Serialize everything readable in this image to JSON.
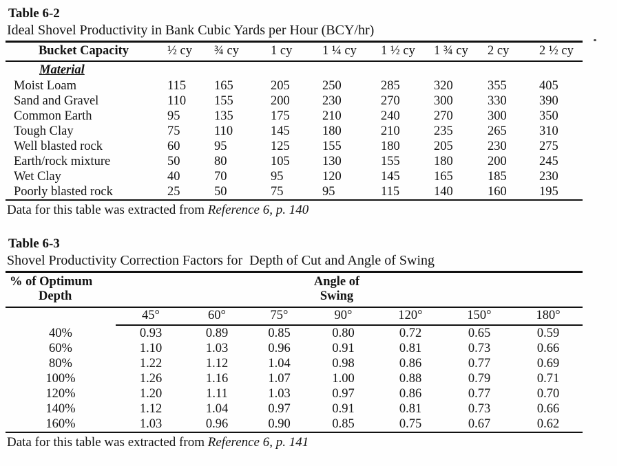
{
  "colors": {
    "page_background": "#fefefe",
    "ink": "#131313",
    "rule": "#111111"
  },
  "table_6_2": {
    "title": "Table 6-2",
    "subtitle": "Ideal Shovel Productivity in Bank Cubic Yards per Hour (BCY/hr)",
    "header_label": "Bucket Capacity",
    "columns": [
      "½ cy",
      "¾ cy",
      "1 cy",
      "1 ¼ cy",
      "1 ½ cy",
      "1 ¾ cy",
      "2 cy",
      "2 ½ cy"
    ],
    "material_label": "Material",
    "rows": [
      {
        "material": "Moist Loam",
        "values": [
          115,
          165,
          205,
          250,
          285,
          320,
          355,
          405
        ]
      },
      {
        "material": "Sand and Gravel",
        "values": [
          110,
          155,
          200,
          230,
          270,
          300,
          330,
          390
        ]
      },
      {
        "material": "Common Earth",
        "values": [
          95,
          135,
          175,
          210,
          240,
          270,
          300,
          350
        ]
      },
      {
        "material": "Tough Clay",
        "values": [
          75,
          110,
          145,
          180,
          210,
          235,
          265,
          310
        ]
      },
      {
        "material": "Well blasted rock",
        "values": [
          60,
          95,
          125,
          155,
          180,
          205,
          230,
          275
        ]
      },
      {
        "material": "Earth/rock mixture",
        "values": [
          50,
          80,
          105,
          130,
          155,
          180,
          200,
          245
        ]
      },
      {
        "material": "Wet Clay",
        "values": [
          40,
          70,
          95,
          120,
          145,
          165,
          185,
          230
        ]
      },
      {
        "material": "Poorly blasted rock",
        "values": [
          25,
          50,
          75,
          95,
          115,
          140,
          160,
          195
        ]
      }
    ],
    "caption_prefix": "Data for this table was extracted from ",
    "caption_ref": "Reference 6, p. 140"
  },
  "table_6_3": {
    "title": "Table 6-3",
    "subtitle": "Shovel Productivity Correction Factors for  Depth of Cut and Angle of Swing",
    "row_group_label_line1": "% of Optimum",
    "row_group_label_line2": "Depth",
    "col_group_label_line1": "Angle of",
    "col_group_label_line2": "Swing",
    "columns": [
      "45°",
      "60°",
      "75°",
      "90°",
      "120°",
      "150°",
      "180°"
    ],
    "rows": [
      {
        "depth": "40%",
        "values": [
          "0.93",
          "0.89",
          "0.85",
          "0.80",
          "0.72",
          "0.65",
          "0.59"
        ]
      },
      {
        "depth": "60%",
        "values": [
          "1.10",
          "1.03",
          "0.96",
          "0.91",
          "0.81",
          "0.73",
          "0.66"
        ]
      },
      {
        "depth": "80%",
        "values": [
          "1.22",
          "1.12",
          "1.04",
          "0.98",
          "0.86",
          "0.77",
          "0.69"
        ]
      },
      {
        "depth": "100%",
        "values": [
          "1.26",
          "1.16",
          "1.07",
          "1.00",
          "0.88",
          "0.79",
          "0.71"
        ]
      },
      {
        "depth": "120%",
        "values": [
          "1.20",
          "1.11",
          "1.03",
          "0.97",
          "0.86",
          "0.77",
          "0.70"
        ]
      },
      {
        "depth": "140%",
        "values": [
          "1.12",
          "1.04",
          "0.97",
          "0.91",
          "0.81",
          "0.73",
          "0.66"
        ]
      },
      {
        "depth": "160%",
        "values": [
          "1.03",
          "0.96",
          "0.90",
          "0.85",
          "0.75",
          "0.67",
          "0.62"
        ]
      }
    ],
    "caption_prefix": "Data for this table was extracted from ",
    "caption_ref": "Reference 6, p. 141"
  }
}
